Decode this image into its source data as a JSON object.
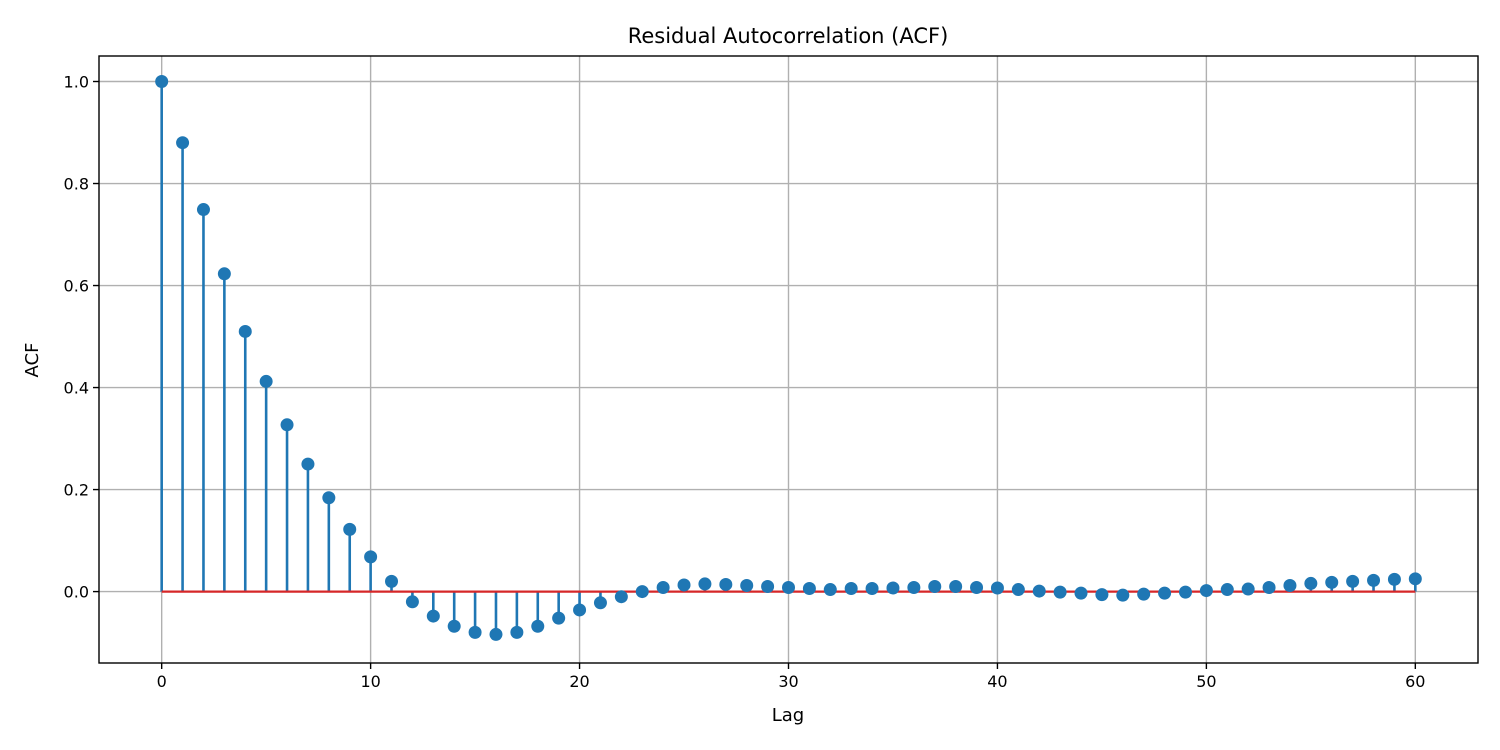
{
  "chart_data": {
    "type": "stem",
    "title": "Residual Autocorrelation (ACF)",
    "xlabel": "Lag",
    "ylabel": "ACF",
    "xlim": [
      -3,
      63
    ],
    "ylim": [
      -0.14,
      1.05
    ],
    "xticks": [
      0,
      10,
      20,
      30,
      40,
      50,
      60
    ],
    "xtick_labels": [
      "0",
      "10",
      "20",
      "30",
      "40",
      "50",
      "60"
    ],
    "yticks": [
      0.0,
      0.2,
      0.4,
      0.6,
      0.8,
      1.0
    ],
    "ytick_labels": [
      "0.0",
      "0.2",
      "0.4",
      "0.6",
      "0.8",
      "1.0"
    ],
    "grid": true,
    "stem_color": "#1f77b4",
    "baseline_color": "#d62728",
    "baseline_value": 0,
    "x": [
      0,
      1,
      2,
      3,
      4,
      5,
      6,
      7,
      8,
      9,
      10,
      11,
      12,
      13,
      14,
      15,
      16,
      17,
      18,
      19,
      20,
      21,
      22,
      23,
      24,
      25,
      26,
      27,
      28,
      29,
      30,
      31,
      32,
      33,
      34,
      35,
      36,
      37,
      38,
      39,
      40,
      41,
      42,
      43,
      44,
      45,
      46,
      47,
      48,
      49,
      50,
      51,
      52,
      53,
      54,
      55,
      56,
      57,
      58,
      59,
      60
    ],
    "values": [
      1.0,
      0.88,
      0.749,
      0.623,
      0.51,
      0.412,
      0.327,
      0.25,
      0.184,
      0.122,
      0.068,
      0.02,
      -0.02,
      -0.048,
      -0.068,
      -0.08,
      -0.084,
      -0.08,
      -0.068,
      -0.052,
      -0.036,
      -0.022,
      -0.01,
      0.0,
      0.008,
      0.013,
      0.015,
      0.014,
      0.012,
      0.01,
      0.008,
      0.006,
      0.004,
      0.006,
      0.006,
      0.007,
      0.008,
      0.01,
      0.01,
      0.008,
      0.007,
      0.004,
      0.001,
      -0.001,
      -0.003,
      -0.006,
      -0.007,
      -0.005,
      -0.003,
      -0.001,
      0.002,
      0.004,
      0.005,
      0.008,
      0.012,
      0.016,
      0.018,
      0.02,
      0.022,
      0.024,
      0.025
    ]
  }
}
